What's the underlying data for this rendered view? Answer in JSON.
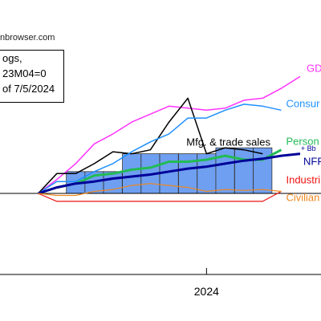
{
  "watermark": "nbrowser.com",
  "note": {
    "line1": "ogs,",
    "line2": "23M04=0",
    "line3": "of 7/5/2024"
  },
  "chart_data": {
    "type": "line",
    "title": "",
    "xlabel": "",
    "ylabel": "",
    "x_axis": {
      "tick_labels": [
        {
          "label": "2024",
          "x": 2024.0
        }
      ]
    },
    "x_range": [
      2023.08,
      2024.51
    ],
    "ylim": [
      -3.5,
      6.0
    ],
    "grid": false,
    "reference_line": {
      "y": 0,
      "color": "#000000"
    },
    "x": [
      2023.25,
      2023.333,
      2023.417,
      2023.5,
      2023.583,
      2023.667,
      2023.75,
      2023.833,
      2023.917,
      2024.0,
      2024.083,
      2024.167,
      2024.25,
      2024.333,
      2024.417
    ],
    "bars": {
      "name": "",
      "color": "#6f9ff0",
      "values": [
        null,
        null,
        1.1,
        1.1,
        1.1,
        2.0,
        2.0,
        2.0,
        2.0,
        2.0,
        2.3,
        2.3,
        2.3,
        null,
        null
      ]
    },
    "series": [
      {
        "name": "GDP (S",
        "label": "GDP (S",
        "color": "#ff33ff",
        "width": 1.5,
        "values": [
          0.0,
          0.7,
          1.5,
          2.5,
          3.0,
          3.6,
          4.0,
          4.4,
          4.3,
          4.2,
          4.3,
          4.7,
          4.8,
          5.3,
          5.9
        ]
      },
      {
        "name": "Mfg. & trade sales",
        "label": "Mfg. & trade sales",
        "color": "#000000",
        "width": 1.5,
        "values": [
          0.0,
          1.0,
          1.0,
          1.5,
          2.1,
          2.0,
          2.2,
          3.6,
          4.8,
          2.0,
          2.3,
          2.2,
          2.0,
          null,
          null
        ]
      },
      {
        "name": "Consur",
        "label": "Consur",
        "color": "#1e90ff",
        "width": 1.5,
        "values": [
          0.0,
          0.6,
          0.6,
          1.1,
          1.5,
          2.1,
          2.6,
          3.0,
          3.8,
          3.8,
          4.2,
          4.5,
          4.4,
          4.2,
          null
        ]
      },
      {
        "name": "Person",
        "label": "Person",
        "color": "#22bb55",
        "width": 3,
        "values": [
          0.0,
          0.3,
          0.5,
          0.9,
          1.0,
          1.2,
          1.3,
          1.6,
          1.6,
          1.7,
          1.9,
          1.7,
          1.7,
          2.2,
          null
        ]
      },
      {
        "name": "NFP",
        "label": "NFP",
        "color": "#000099",
        "width": 3,
        "values": [
          0.0,
          0.3,
          0.5,
          0.6,
          0.75,
          0.85,
          0.95,
          1.1,
          1.25,
          1.35,
          1.5,
          1.65,
          1.75,
          1.9,
          2.0
        ]
      },
      {
        "name": "Industri",
        "label": "Industri",
        "color": "#ee1111",
        "width": 1.2,
        "values": [
          0.0,
          -0.4,
          -0.4,
          -0.4,
          -0.4,
          -0.4,
          -0.4,
          -0.4,
          -0.4,
          -0.4,
          -0.4,
          -0.4,
          -0.4,
          0.1,
          null
        ]
      },
      {
        "name": "Civilian",
        "label": "Civilian",
        "color": "#ee8822",
        "width": 1.2,
        "values": [
          0.0,
          -0.1,
          -0.1,
          0.1,
          0.2,
          0.4,
          0.5,
          0.4,
          0.3,
          0.1,
          0.2,
          0.15,
          0.2,
          0.1,
          null
        ]
      }
    ],
    "annotations": [
      {
        "text": "+ Bb",
        "x": 2024.42,
        "y": 2.15,
        "color": "#000099"
      }
    ]
  }
}
